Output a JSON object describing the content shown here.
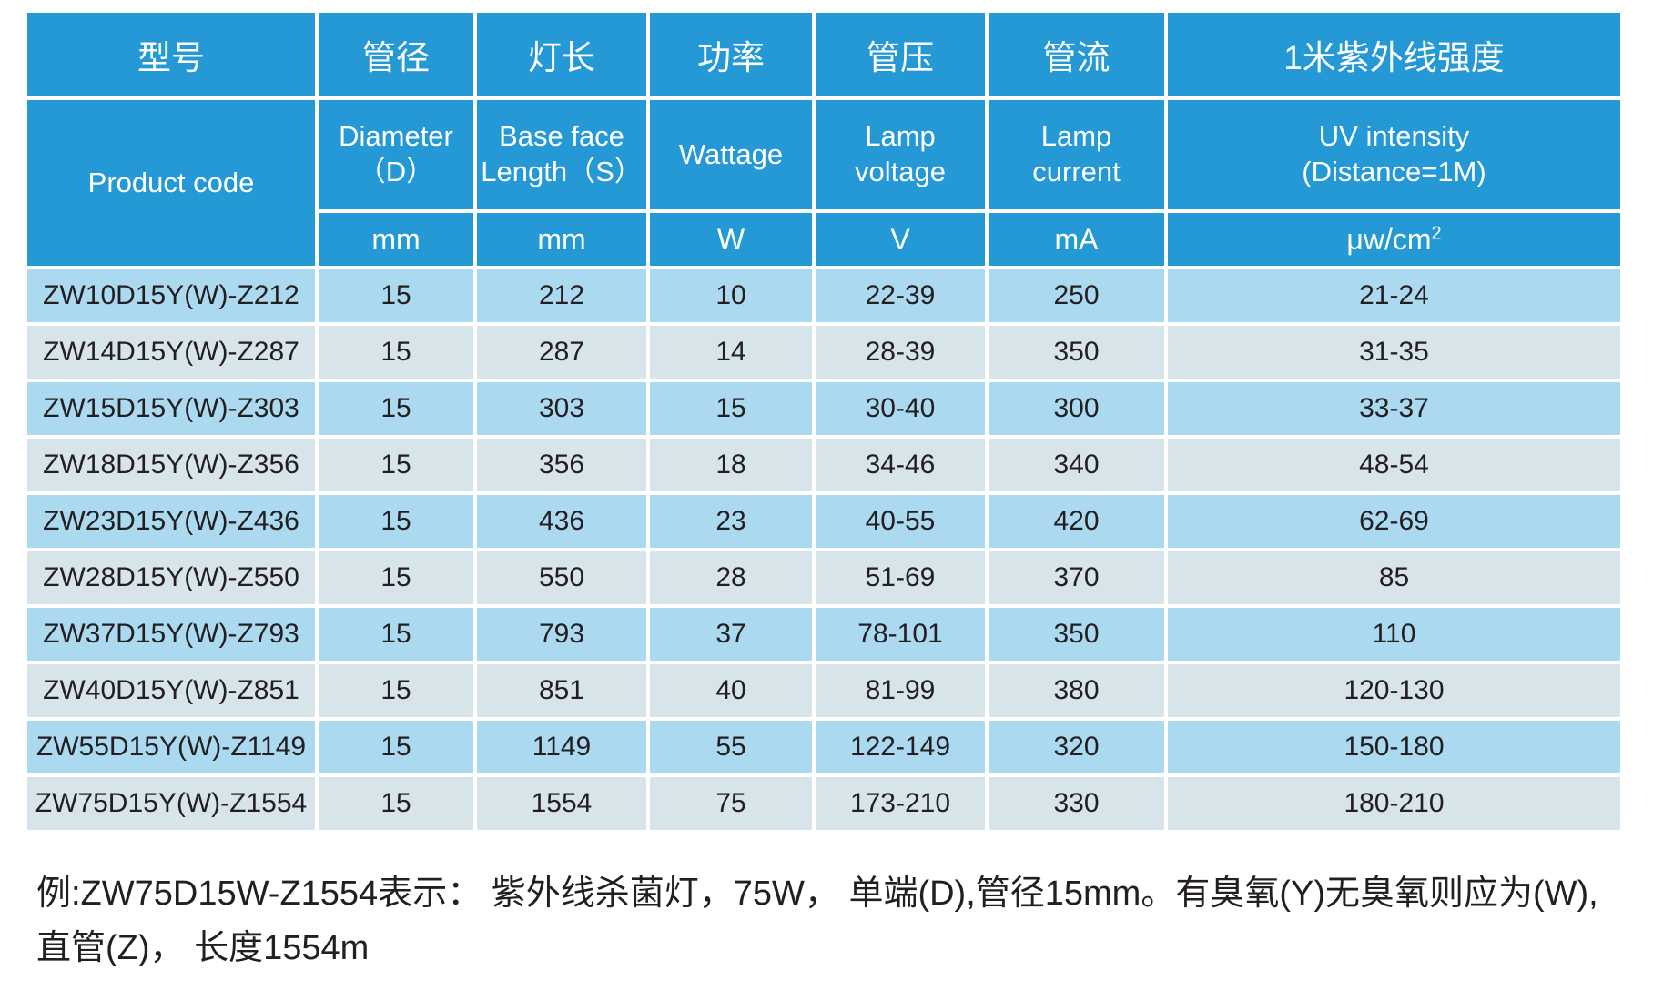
{
  "colors": {
    "header_bg": "#2499d6",
    "row_odd_bg": "#abdaf0",
    "row_even_bg": "#d7e4ea",
    "grid_line": "#ffffff",
    "header_text": "#ffffff",
    "body_text": "#231f20"
  },
  "table": {
    "columns": [
      {
        "id": "product-code",
        "zh": "型号",
        "en": "Product  code",
        "unit": ""
      },
      {
        "id": "diameter",
        "zh": "管径",
        "en": "Diameter\n（D）",
        "unit": "mm"
      },
      {
        "id": "length",
        "zh": "灯长",
        "en": "Base face\nLength（S）",
        "unit": "mm"
      },
      {
        "id": "wattage",
        "zh": "功率",
        "en": "Wattage",
        "unit": "W"
      },
      {
        "id": "voltage",
        "zh": "管压",
        "en": "Lamp\nvoltage",
        "unit": "V"
      },
      {
        "id": "current",
        "zh": "管流",
        "en": "Lamp\ncurrent",
        "unit": "mA"
      },
      {
        "id": "uv-intensity",
        "zh": "1米紫外线强度",
        "en": "UV intensity\n(Distance=1M)",
        "unit": "μw/cm",
        "unit_sup": "2"
      }
    ],
    "rows": [
      [
        "ZW10D15Y(W)-Z212",
        "15",
        "212",
        "10",
        "22-39",
        "250",
        "21-24"
      ],
      [
        "ZW14D15Y(W)-Z287",
        "15",
        "287",
        "14",
        "28-39",
        "350",
        "31-35"
      ],
      [
        "ZW15D15Y(W)-Z303",
        "15",
        "303",
        "15",
        "30-40",
        "300",
        "33-37"
      ],
      [
        "ZW18D15Y(W)-Z356",
        "15",
        "356",
        "18",
        "34-46",
        "340",
        "48-54"
      ],
      [
        "ZW23D15Y(W)-Z436",
        "15",
        "436",
        "23",
        "40-55",
        "420",
        "62-69"
      ],
      [
        "ZW28D15Y(W)-Z550",
        "15",
        "550",
        "28",
        "51-69",
        "370",
        "85"
      ],
      [
        "ZW37D15Y(W)-Z793",
        "15",
        "793",
        "37",
        "78-101",
        "350",
        "110"
      ],
      [
        "ZW40D15Y(W)-Z851",
        "15",
        "851",
        "40",
        "81-99",
        "380",
        "120-130"
      ],
      [
        "ZW55D15Y(W)-Z1149",
        "15",
        "1149",
        "55",
        "122-149",
        "320",
        "150-180"
      ],
      [
        "ZW75D15Y(W)-Z1554",
        "15",
        "1554",
        "75",
        "173-210",
        "330",
        "180-210"
      ]
    ]
  },
  "footer": {
    "line1": "例:ZW75D15W-Z1554表示： 紫外线杀菌灯，75W， 单端(D),管径15mm。有臭氧(Y)无臭氧则应为(W),",
    "line2": "直管(Z)， 长度1554m"
  }
}
